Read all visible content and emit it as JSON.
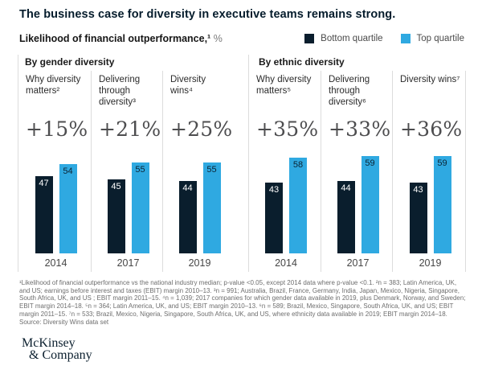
{
  "title": "The business case for diversity in executive teams remains strong.",
  "subtitle": {
    "label": "Likelihood of financial outperformance,¹",
    "unit": "%"
  },
  "legend": {
    "bottom": {
      "label": "Bottom quartile",
      "color": "#0A1E2D"
    },
    "top": {
      "label": "Top quartile",
      "color": "#2FA9E1"
    }
  },
  "chart_data": {
    "type": "bar",
    "title": "Likelihood of financial outperformance, %",
    "ylabel": "Likelihood of financial outperformance, %",
    "ylim": [
      0,
      60
    ],
    "grid": false,
    "legend_position": "top-right",
    "series_names": [
      "Bottom quartile",
      "Top quartile"
    ],
    "panels": [
      {
        "label": "By gender diversity",
        "groups": [
          {
            "header": "Why diversity matters²",
            "delta": "+15%",
            "year": "2014",
            "bottom": 47,
            "top": 54
          },
          {
            "header": "Delivering through diversity³",
            "delta": "+21%",
            "year": "2017",
            "bottom": 45,
            "top": 55
          },
          {
            "header": "Diversity wins⁴",
            "delta": "+25%",
            "year": "2019",
            "bottom": 44,
            "top": 55
          }
        ]
      },
      {
        "label": "By ethnic diversity",
        "groups": [
          {
            "header": "Why diversity matters⁵",
            "delta": "+35%",
            "year": "2014",
            "bottom": 43,
            "top": 58
          },
          {
            "header": "Delivering through diversity⁶",
            "delta": "+33%",
            "year": "2017",
            "bottom": 44,
            "top": 59
          },
          {
            "header": "Diversity wins⁷",
            "delta": "+36%",
            "year": "2019",
            "bottom": 43,
            "top": 59
          }
        ]
      }
    ]
  },
  "footnote": "¹Likelihood of financial outperformance vs the national industry median; p-value <0.05, except 2014 data where p-value <0.1. ²n = 383; Latin America, UK, and US; earnings before interest and taxes (EBIT) margin 2010–13. ³n = 991; Australia, Brazil, France, Germany, India, Japan, Mexico, Nigeria, Singapore, South Africa, UK, and US ; EBIT margin 2011–15. ⁴n = 1,039; 2017 companies for which gender data available in 2019, plus Denmark, Norway, and Sweden; EBIT margin 2014–18. ⁵n = 364; Latin America, UK, and US; EBIT margin 2010–13. ⁶n = 589; Brazil, Mexico, Singapore, South Africa, UK, and US; EBIT margin 2011–15. ⁷n = 533; Brazil, Mexico, Nigeria, Singapore, South Africa, UK, and US, where ethnicity data available in 2019; EBIT margin 2014–18.",
  "source": "Source: Diversity Wins data set",
  "logo": {
    "line1": "McKinsey",
    "line2": "& Company"
  }
}
